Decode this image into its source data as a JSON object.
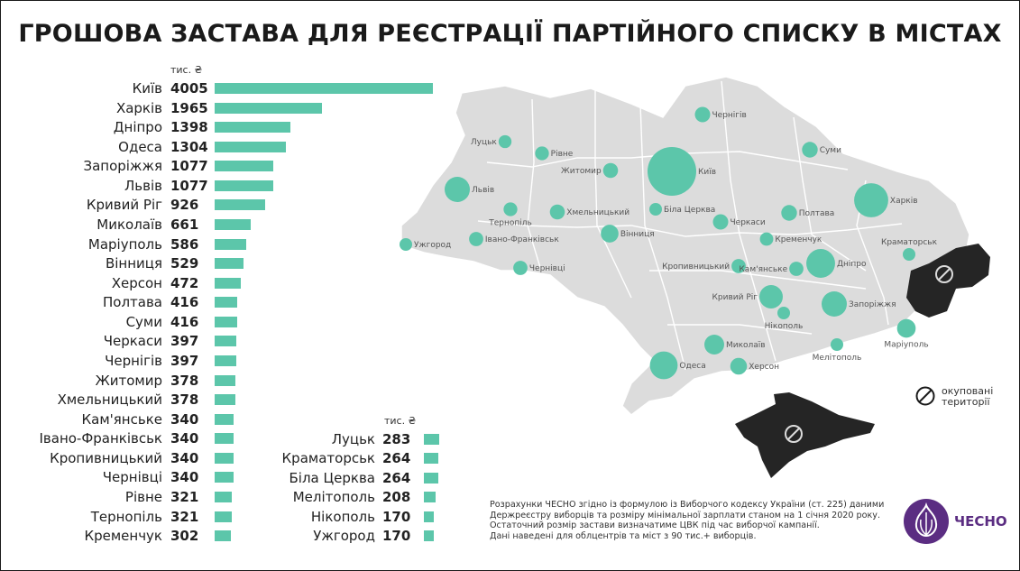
{
  "title": "ГРОШОВА ЗАСТАВА ДЛЯ РЕЄСТРАЦІЇ ПАРТІЙНОГО СПИСКУ В МІСТАХ",
  "unit_label": "тис. ₴",
  "colors": {
    "bar": "#5cc6aa",
    "map_land": "#dcdcdc",
    "occupied": "#252525",
    "bubble": "#5cc6aa",
    "logo": "#5b2d82"
  },
  "chart_data": {
    "type": "bar",
    "orientation": "horizontal",
    "columns": [
      {
        "categories": [
          "Київ",
          "Харків",
          "Дніпро",
          "Одеса",
          "Запоріжжя",
          "Львів",
          "Кривий Ріг",
          "Миколаїв",
          "Маріуполь",
          "Вінниця",
          "Херсон",
          "Полтава",
          "Суми",
          "Черкаси",
          "Чернігів",
          "Житомир",
          "Хмельницький",
          "Кам'янське",
          "Івано-Франківськ",
          "Кропивницький",
          "Чернівці",
          "Рівне",
          "Тернопіль",
          "Кременчук"
        ],
        "values": [
          4005,
          1965,
          1398,
          1304,
          1077,
          1077,
          926,
          661,
          586,
          529,
          472,
          416,
          416,
          397,
          397,
          378,
          378,
          340,
          340,
          340,
          340,
          321,
          321,
          302
        ]
      },
      {
        "categories": [
          "Луцьк",
          "Краматорськ",
          "Біла Церква",
          "Мелітополь",
          "Нікополь",
          "Ужгород"
        ],
        "values": [
          283,
          264,
          264,
          208,
          170,
          170
        ]
      }
    ],
    "xlim": [
      0,
      4005
    ]
  },
  "map": {
    "cities": [
      {
        "name": "Чернігів",
        "value": 397
      },
      {
        "name": "Суми",
        "value": 416
      },
      {
        "name": "Луцьк",
        "value": 283
      },
      {
        "name": "Рівне",
        "value": 321
      },
      {
        "name": "Житомир",
        "value": 378
      },
      {
        "name": "Київ",
        "value": 4005
      },
      {
        "name": "Львів",
        "value": 1077
      },
      {
        "name": "Тернопіль",
        "value": 321
      },
      {
        "name": "Хмельницький",
        "value": 378
      },
      {
        "name": "Біла Церква",
        "value": 264
      },
      {
        "name": "Черкаси",
        "value": 397
      },
      {
        "name": "Полтава",
        "value": 416
      },
      {
        "name": "Харків",
        "value": 1965
      },
      {
        "name": "Ужгород",
        "value": 170
      },
      {
        "name": "Івано-Франківськ",
        "value": 340
      },
      {
        "name": "Вінниця",
        "value": 529
      },
      {
        "name": "Кременчук",
        "value": 302
      },
      {
        "name": "Краматорськ",
        "value": 264
      },
      {
        "name": "Чернівці",
        "value": 340
      },
      {
        "name": "Кропивницький",
        "value": 340
      },
      {
        "name": "Кам'янське",
        "value": 340
      },
      {
        "name": "Дніпро",
        "value": 1398
      },
      {
        "name": "Кривий Ріг",
        "value": 926
      },
      {
        "name": "Запоріжжя",
        "value": 1077
      },
      {
        "name": "Нікополь",
        "value": 170
      },
      {
        "name": "Маріуполь",
        "value": 586
      },
      {
        "name": "Миколаїв",
        "value": 661
      },
      {
        "name": "Мелітополь",
        "value": 208
      },
      {
        "name": "Одеса",
        "value": 1304
      },
      {
        "name": "Херсон",
        "value": 472
      }
    ]
  },
  "legend": {
    "line1": "окуповані",
    "line2": "території",
    "icon": "no-entry-icon"
  },
  "note": [
    "Розрахунки ЧЕСНО згідно із формулою із Виборчого кодексу України (ст. 225) даними",
    "Держреєстру виборців та розміру мінімальної зарплати станом на 1 січня 2020 року.",
    "Остаточний розмір застави визначатиме ЦВК під час виборчої кампанії.",
    "Дані наведені для облцентрів та міст з 90 тис.+ виборців."
  ],
  "logo": {
    "text": "ЧЕСНО",
    "icon": "garlic-icon"
  }
}
